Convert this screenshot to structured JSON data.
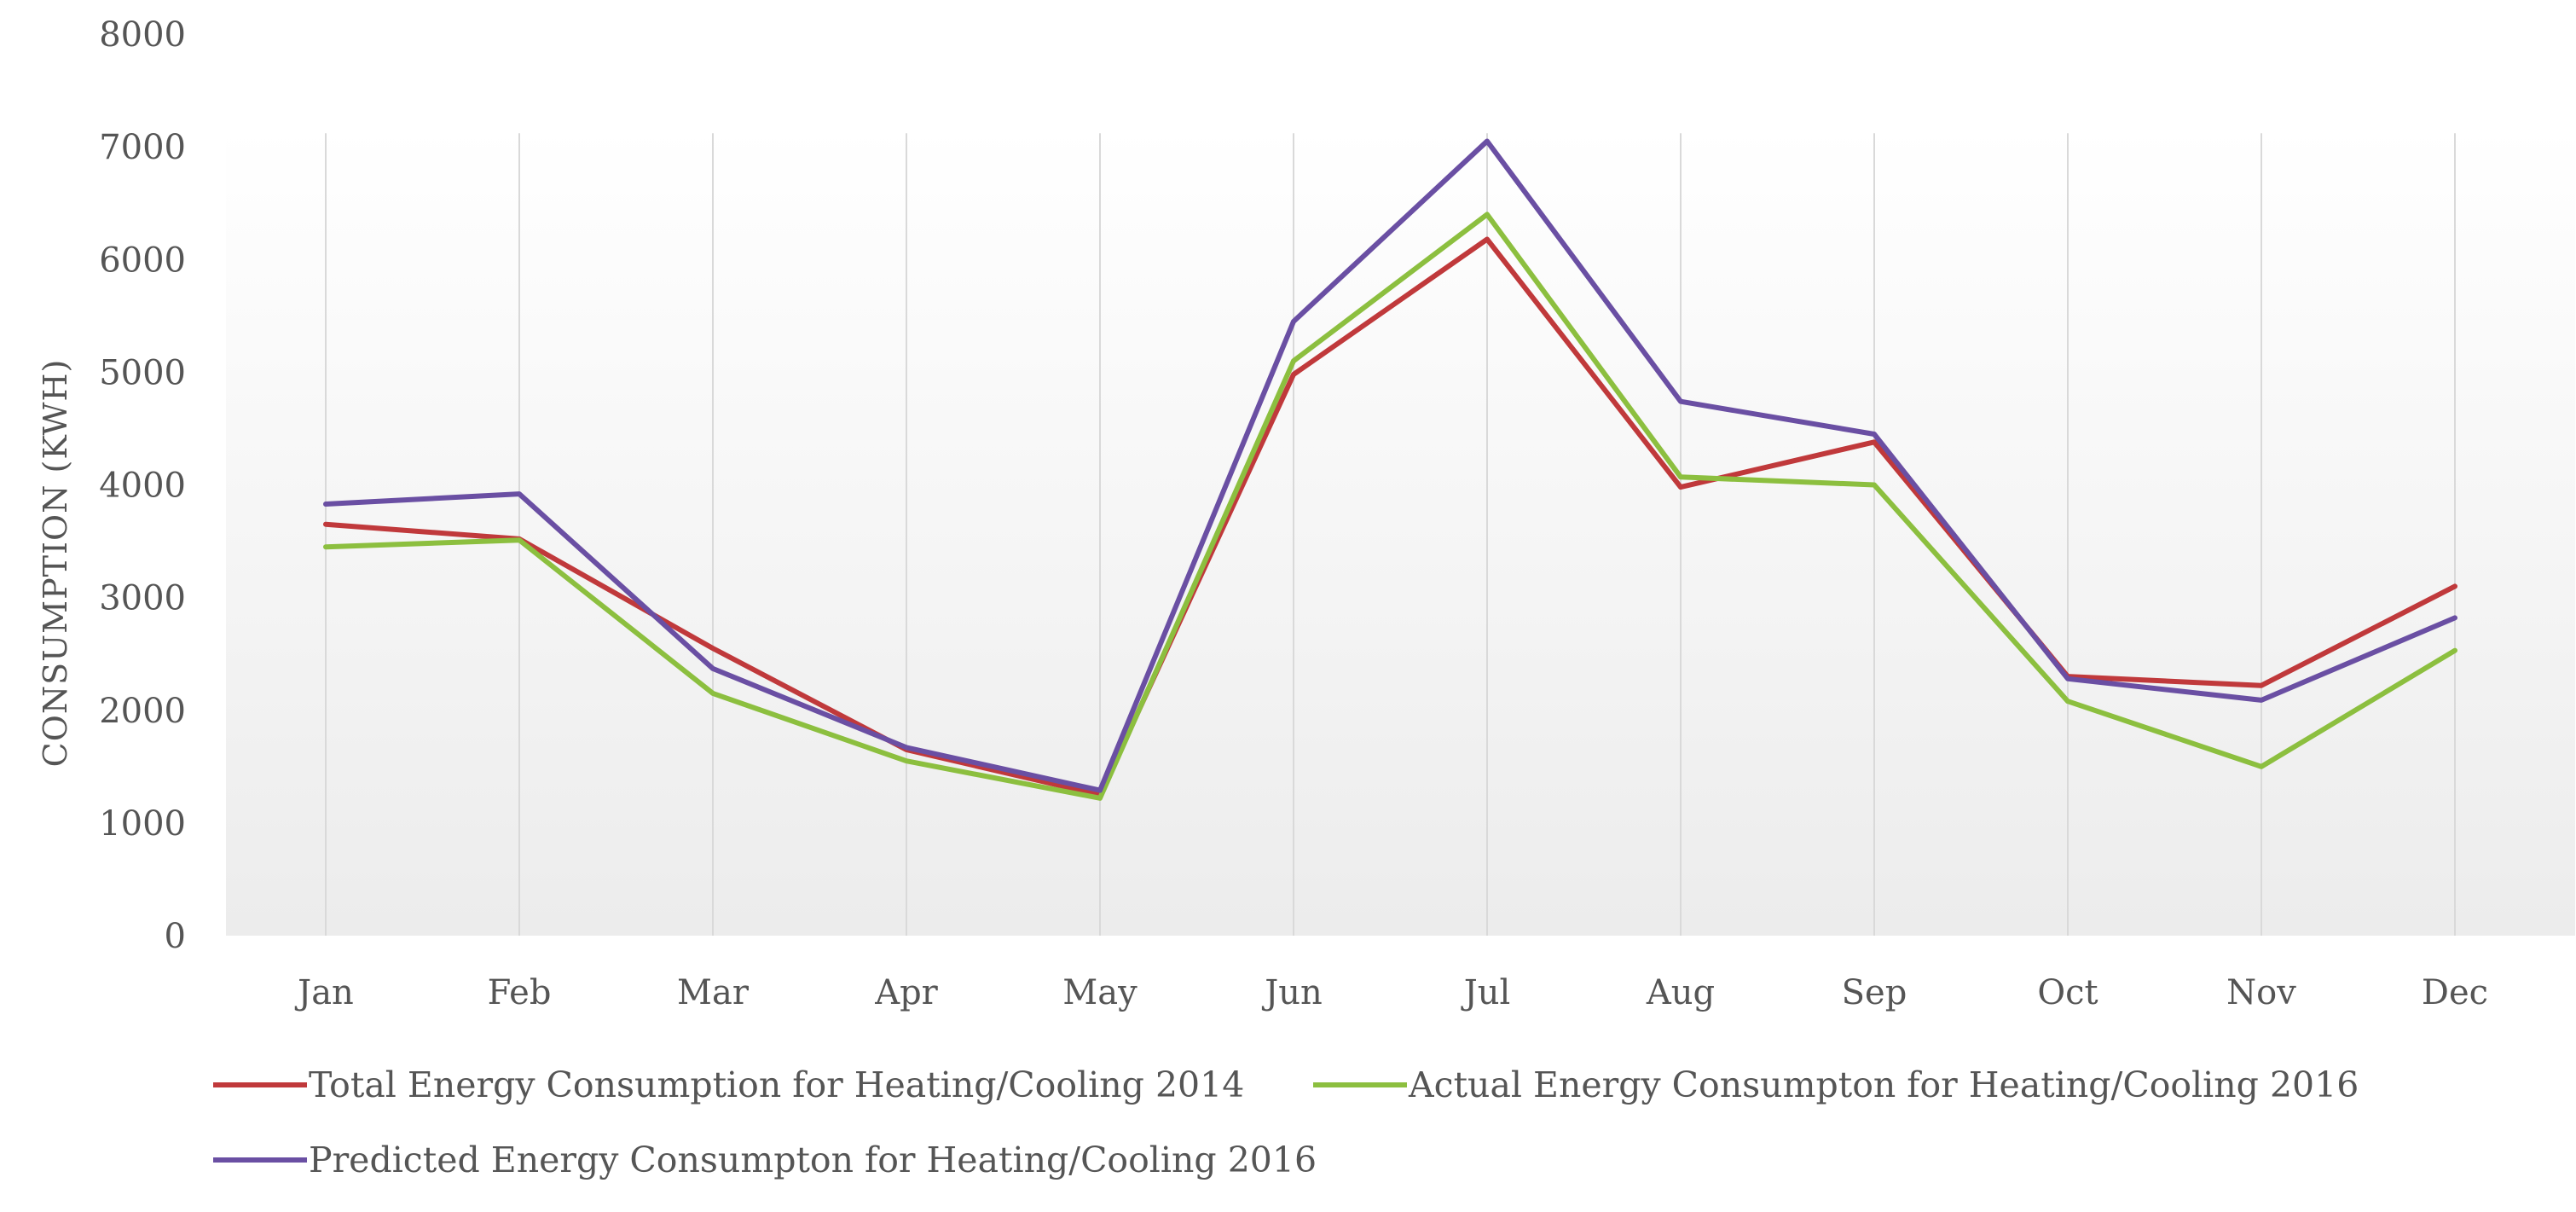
{
  "chart_data": {
    "type": "line",
    "title": "",
    "xlabel": "",
    "ylabel": "CONSUMPTION (KWH)",
    "ylim": [
      0,
      8000
    ],
    "yticks": [
      "0",
      "1000",
      "2000",
      "3000",
      "4000",
      "5000",
      "6000",
      "7000",
      "8000"
    ],
    "categories": [
      "Jan",
      "Feb",
      "Mar",
      "Apr",
      "May",
      "Jun",
      "Jul",
      "Aug",
      "Sep",
      "Oct",
      "Nov",
      "Dec"
    ],
    "grid": "vertical",
    "legend_position": "bottom",
    "series": [
      {
        "name": "Total Energy Consumption for Heating/Cooling 2014",
        "color": "#c0393b",
        "values": [
          3650,
          3520,
          2550,
          1650,
          1250,
          4980,
          6180,
          3980,
          4380,
          2300,
          2220,
          3100
        ]
      },
      {
        "name": "Actual Energy Consumpton for Heating/Cooling 2016",
        "color": "#8cbf3f",
        "values": [
          3450,
          3510,
          2150,
          1550,
          1220,
          5100,
          6400,
          4070,
          4000,
          2080,
          1500,
          2530
        ]
      },
      {
        "name": "Predicted Energy Consumpton for Heating/Cooling 2016",
        "color": "#6a4fa3",
        "values": [
          3830,
          3920,
          2370,
          1670,
          1290,
          5450,
          7050,
          4740,
          4450,
          2280,
          2090,
          2820
        ]
      }
    ]
  }
}
